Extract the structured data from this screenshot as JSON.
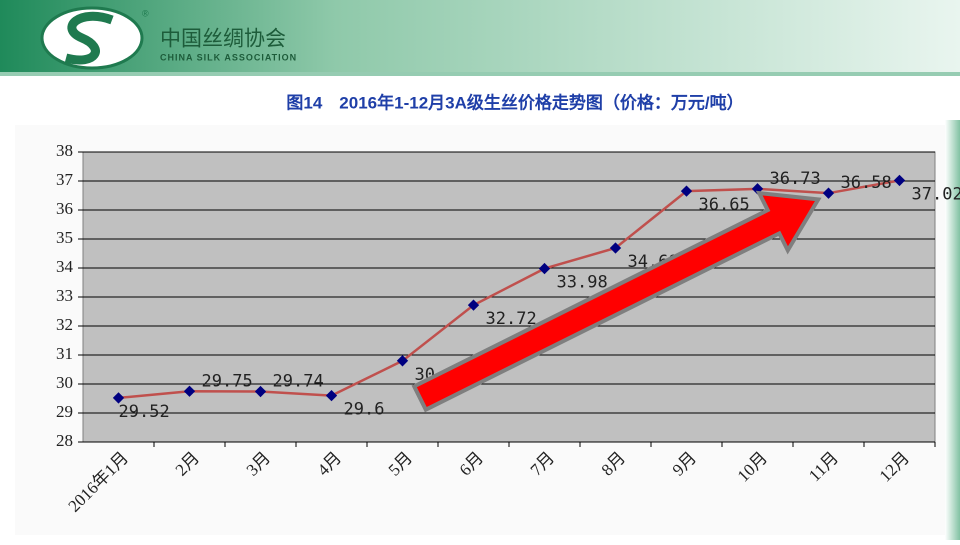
{
  "header": {
    "org_cn": "中国丝绸协会",
    "org_en": "CHINA SILK ASSOCIATION"
  },
  "chart_data": {
    "type": "line",
    "title": "图14　2016年1-12月3A级生丝价格走势图（价格：万元/吨）",
    "categories": [
      "2016年1月",
      "2月",
      "3月",
      "4月",
      "5月",
      "6月",
      "7月",
      "8月",
      "9月",
      "10月",
      "11月",
      "12月"
    ],
    "values": [
      29.52,
      29.75,
      29.74,
      29.6,
      30.8,
      32.72,
      33.98,
      34.69,
      36.65,
      36.73,
      36.58,
      37.02
    ],
    "color": "#c0504d",
    "marker_color": "#000080",
    "ylim": [
      28,
      38
    ],
    "yticks": [
      28,
      29,
      30,
      31,
      32,
      33,
      34,
      35,
      36,
      37,
      38
    ],
    "grid": true
  }
}
